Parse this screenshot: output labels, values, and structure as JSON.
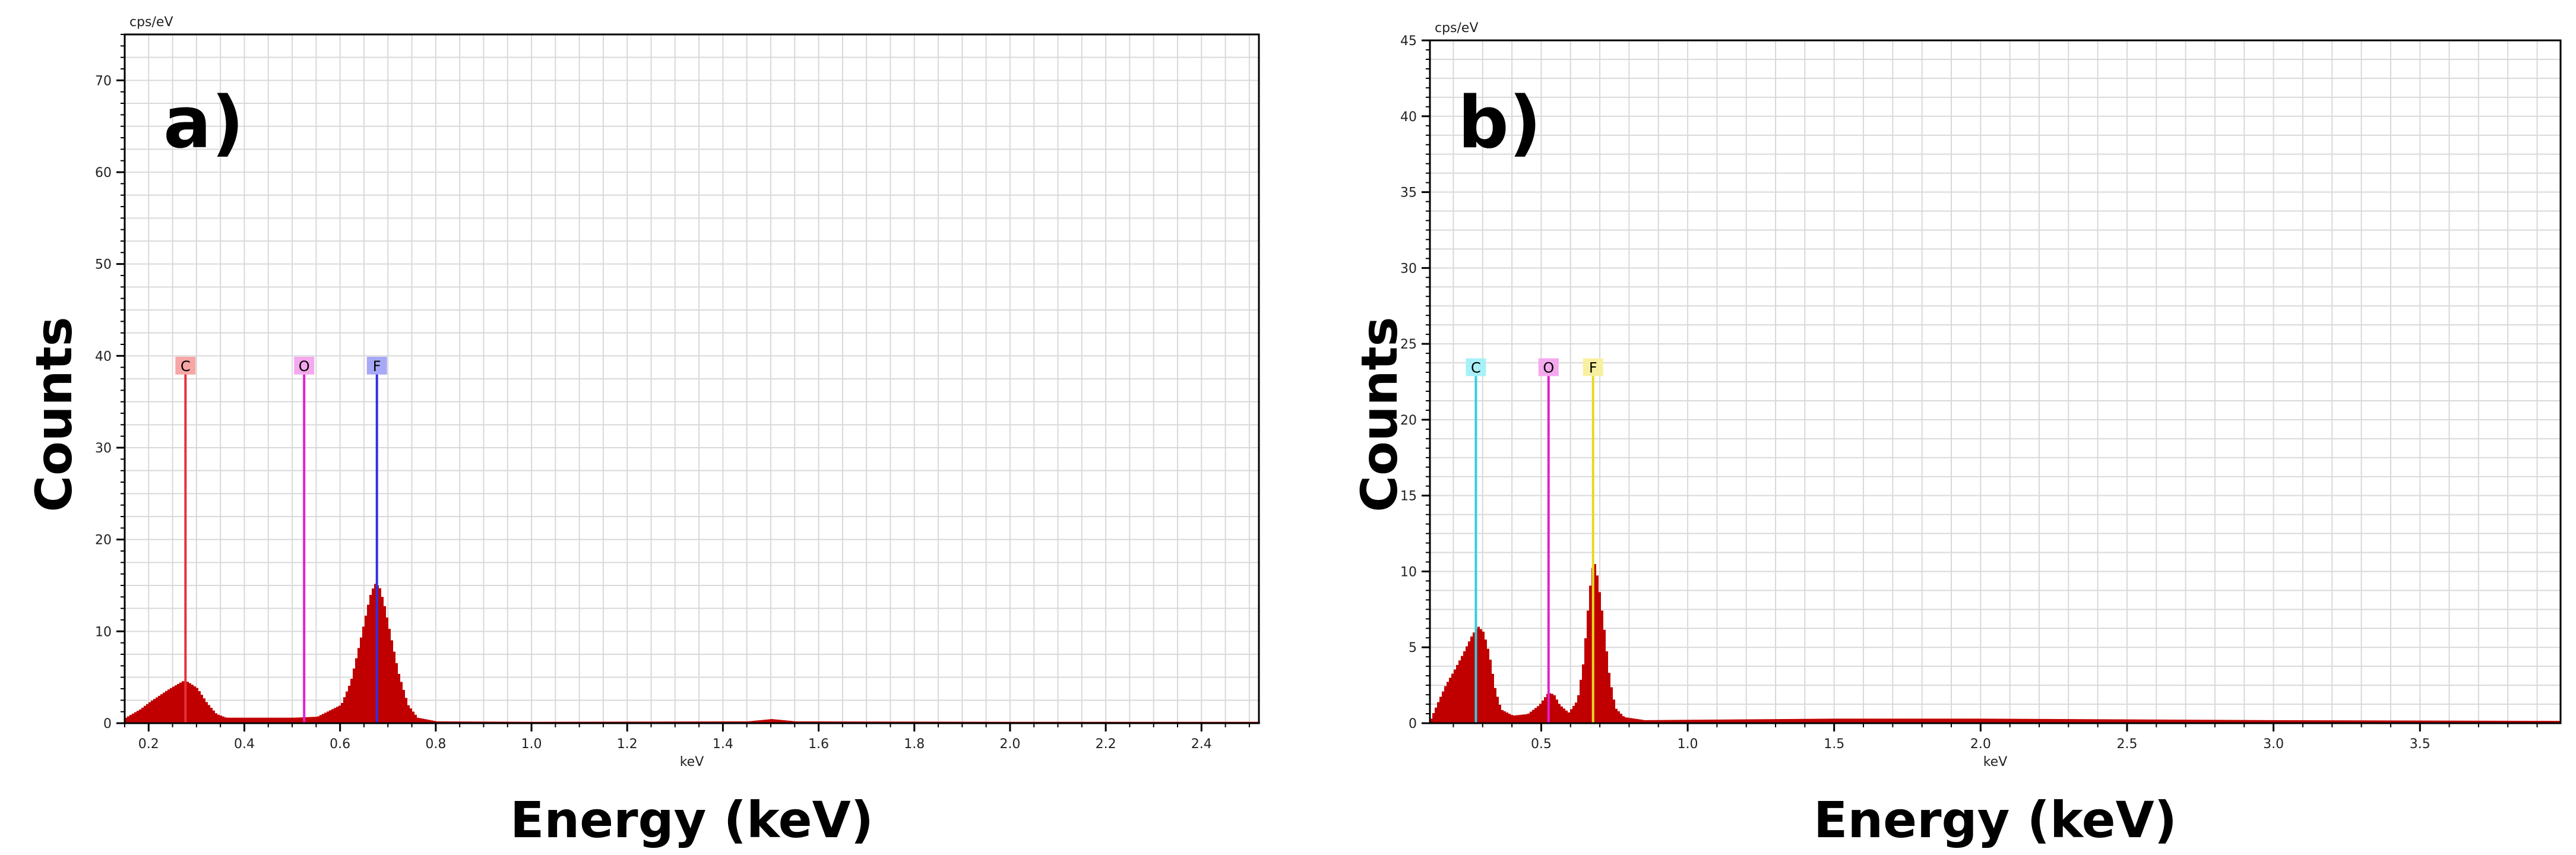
{
  "chart_data": [
    {
      "type": "bar",
      "panel_label": "a)",
      "xlabel": "Energy (keV)",
      "ylabel": "Counts",
      "x_unit": "keV",
      "y_unit": "cps/eV",
      "xlim": [
        0.15,
        2.52
      ],
      "ylim": [
        0,
        75
      ],
      "x_ticks": [
        "0.2",
        "0.4",
        "0.6",
        "0.8",
        "1.0",
        "1.2",
        "1.4",
        "1.6",
        "1.8",
        "2.0",
        "2.2",
        "2.4"
      ],
      "y_ticks": [
        "0",
        "10",
        "20",
        "30",
        "40",
        "50",
        "60",
        "70"
      ],
      "grid": true,
      "fill_color": "#c00000",
      "peaks": [
        {
          "center": 0.27,
          "height": 4.2,
          "width": 0.035
        },
        {
          "center": 0.67,
          "height": 14.8,
          "width": 0.023
        }
      ],
      "spectrum": [
        {
          "x": 0.15,
          "y": 0.6
        },
        {
          "x": 0.18,
          "y": 1.5
        },
        {
          "x": 0.2,
          "y": 2.3
        },
        {
          "x": 0.22,
          "y": 3.0
        },
        {
          "x": 0.24,
          "y": 3.7
        },
        {
          "x": 0.26,
          "y": 4.3
        },
        {
          "x": 0.27,
          "y": 4.6
        },
        {
          "x": 0.28,
          "y": 4.5
        },
        {
          "x": 0.3,
          "y": 3.8
        },
        {
          "x": 0.32,
          "y": 2.2
        },
        {
          "x": 0.34,
          "y": 1.0
        },
        {
          "x": 0.36,
          "y": 0.6
        },
        {
          "x": 0.4,
          "y": 0.6
        },
        {
          "x": 0.45,
          "y": 0.6
        },
        {
          "x": 0.5,
          "y": 0.6
        },
        {
          "x": 0.55,
          "y": 0.7
        },
        {
          "x": 0.6,
          "y": 2.0
        },
        {
          "x": 0.62,
          "y": 4.5
        },
        {
          "x": 0.64,
          "y": 9.0
        },
        {
          "x": 0.66,
          "y": 13.8
        },
        {
          "x": 0.67,
          "y": 15.2
        },
        {
          "x": 0.68,
          "y": 14.9
        },
        {
          "x": 0.69,
          "y": 13.0
        },
        {
          "x": 0.7,
          "y": 10.5
        },
        {
          "x": 0.72,
          "y": 5.5
        },
        {
          "x": 0.74,
          "y": 2.0
        },
        {
          "x": 0.76,
          "y": 0.6
        },
        {
          "x": 0.8,
          "y": 0.2
        },
        {
          "x": 1.0,
          "y": 0.15
        },
        {
          "x": 1.45,
          "y": 0.2
        },
        {
          "x": 1.5,
          "y": 0.45
        },
        {
          "x": 1.55,
          "y": 0.2
        },
        {
          "x": 2.0,
          "y": 0.15
        },
        {
          "x": 2.52,
          "y": 0.15
        }
      ],
      "lines": [
        {
          "element": "C",
          "energy": 0.277,
          "color": "#e8303a",
          "box_color": "#f7a6a6"
        },
        {
          "element": "O",
          "energy": 0.525,
          "color": "#e020d0",
          "box_color": "#f4a8ee"
        },
        {
          "element": "F",
          "energy": 0.677,
          "color": "#3030e0",
          "box_color": "#a8a8f8"
        }
      ],
      "line_label_y": 39
    },
    {
      "type": "bar",
      "panel_label": "b)",
      "xlabel": "Energy (keV)",
      "ylabel": "Counts",
      "x_unit": "keV",
      "y_unit": "cps/eV",
      "xlim": [
        0.12,
        3.98
      ],
      "ylim": [
        0,
        45
      ],
      "x_ticks": [
        "0.5",
        "1.0",
        "1.5",
        "2.0",
        "2.5",
        "3.0",
        "3.5"
      ],
      "y_ticks": [
        "0",
        "5",
        "10",
        "15",
        "20",
        "25",
        "30",
        "35",
        "40",
        "45"
      ],
      "grid": true,
      "fill_color": "#c00000",
      "spectrum": [
        {
          "x": 0.12,
          "y": 0.3
        },
        {
          "x": 0.14,
          "y": 1.2
        },
        {
          "x": 0.17,
          "y": 2.5
        },
        {
          "x": 0.2,
          "y": 3.5
        },
        {
          "x": 0.23,
          "y": 4.6
        },
        {
          "x": 0.26,
          "y": 5.8
        },
        {
          "x": 0.28,
          "y": 6.4
        },
        {
          "x": 0.3,
          "y": 6.0
        },
        {
          "x": 0.32,
          "y": 4.5
        },
        {
          "x": 0.34,
          "y": 2.2
        },
        {
          "x": 0.36,
          "y": 0.9
        },
        {
          "x": 0.4,
          "y": 0.5
        },
        {
          "x": 0.45,
          "y": 0.6
        },
        {
          "x": 0.49,
          "y": 1.2
        },
        {
          "x": 0.52,
          "y": 2.0
        },
        {
          "x": 0.54,
          "y": 1.9
        },
        {
          "x": 0.56,
          "y": 1.2
        },
        {
          "x": 0.59,
          "y": 0.7
        },
        {
          "x": 0.62,
          "y": 1.5
        },
        {
          "x": 0.64,
          "y": 4.0
        },
        {
          "x": 0.66,
          "y": 8.5
        },
        {
          "x": 0.67,
          "y": 10.2
        },
        {
          "x": 0.68,
          "y": 10.5
        },
        {
          "x": 0.69,
          "y": 9.5
        },
        {
          "x": 0.71,
          "y": 6.5
        },
        {
          "x": 0.73,
          "y": 3.0
        },
        {
          "x": 0.75,
          "y": 1.0
        },
        {
          "x": 0.78,
          "y": 0.4
        },
        {
          "x": 0.85,
          "y": 0.2
        },
        {
          "x": 1.5,
          "y": 0.3
        },
        {
          "x": 2.0,
          "y": 0.3
        },
        {
          "x": 2.5,
          "y": 0.25
        },
        {
          "x": 3.0,
          "y": 0.2
        },
        {
          "x": 3.98,
          "y": 0.15
        }
      ],
      "lines": [
        {
          "element": "C",
          "energy": 0.277,
          "color": "#30d0e0",
          "box_color": "#a8f0f8"
        },
        {
          "element": "O",
          "energy": 0.525,
          "color": "#e020d0",
          "box_color": "#f4a8ee"
        },
        {
          "element": "F",
          "energy": 0.677,
          "color": "#e8d820",
          "box_color": "#f8f0a0"
        }
      ],
      "line_label_y": 23.5
    }
  ]
}
